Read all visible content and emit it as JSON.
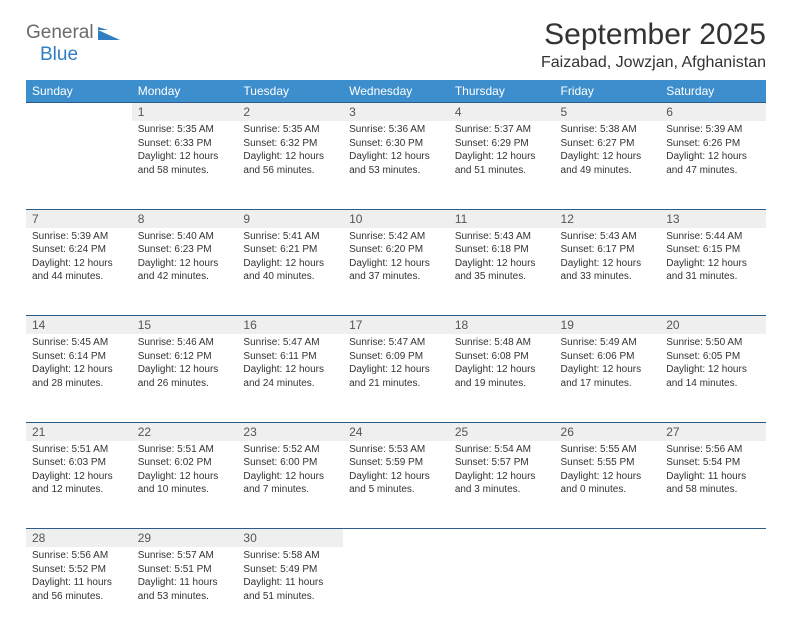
{
  "logo": {
    "line1": "General",
    "line2": "Blue"
  },
  "title": "September 2025",
  "location": "Faizabad, Jowzjan, Afghanistan",
  "colors": {
    "header_bg": "#3d8ecd",
    "header_text": "#ffffff",
    "daynum_bg": "#efefef",
    "rule": "#2a5d8a",
    "text": "#333333",
    "logo_gray": "#6a6a6a",
    "logo_blue": "#2f7fc2"
  },
  "weekdays": [
    "Sunday",
    "Monday",
    "Tuesday",
    "Wednesday",
    "Thursday",
    "Friday",
    "Saturday"
  ],
  "weeks": [
    [
      null,
      {
        "n": "1",
        "sr": "5:35 AM",
        "ss": "6:33 PM",
        "dl": "Daylight: 12 hours and 58 minutes."
      },
      {
        "n": "2",
        "sr": "5:35 AM",
        "ss": "6:32 PM",
        "dl": "Daylight: 12 hours and 56 minutes."
      },
      {
        "n": "3",
        "sr": "5:36 AM",
        "ss": "6:30 PM",
        "dl": "Daylight: 12 hours and 53 minutes."
      },
      {
        "n": "4",
        "sr": "5:37 AM",
        "ss": "6:29 PM",
        "dl": "Daylight: 12 hours and 51 minutes."
      },
      {
        "n": "5",
        "sr": "5:38 AM",
        "ss": "6:27 PM",
        "dl": "Daylight: 12 hours and 49 minutes."
      },
      {
        "n": "6",
        "sr": "5:39 AM",
        "ss": "6:26 PM",
        "dl": "Daylight: 12 hours and 47 minutes."
      }
    ],
    [
      {
        "n": "7",
        "sr": "5:39 AM",
        "ss": "6:24 PM",
        "dl": "Daylight: 12 hours and 44 minutes."
      },
      {
        "n": "8",
        "sr": "5:40 AM",
        "ss": "6:23 PM",
        "dl": "Daylight: 12 hours and 42 minutes."
      },
      {
        "n": "9",
        "sr": "5:41 AM",
        "ss": "6:21 PM",
        "dl": "Daylight: 12 hours and 40 minutes."
      },
      {
        "n": "10",
        "sr": "5:42 AM",
        "ss": "6:20 PM",
        "dl": "Daylight: 12 hours and 37 minutes."
      },
      {
        "n": "11",
        "sr": "5:43 AM",
        "ss": "6:18 PM",
        "dl": "Daylight: 12 hours and 35 minutes."
      },
      {
        "n": "12",
        "sr": "5:43 AM",
        "ss": "6:17 PM",
        "dl": "Daylight: 12 hours and 33 minutes."
      },
      {
        "n": "13",
        "sr": "5:44 AM",
        "ss": "6:15 PM",
        "dl": "Daylight: 12 hours and 31 minutes."
      }
    ],
    [
      {
        "n": "14",
        "sr": "5:45 AM",
        "ss": "6:14 PM",
        "dl": "Daylight: 12 hours and 28 minutes."
      },
      {
        "n": "15",
        "sr": "5:46 AM",
        "ss": "6:12 PM",
        "dl": "Daylight: 12 hours and 26 minutes."
      },
      {
        "n": "16",
        "sr": "5:47 AM",
        "ss": "6:11 PM",
        "dl": "Daylight: 12 hours and 24 minutes."
      },
      {
        "n": "17",
        "sr": "5:47 AM",
        "ss": "6:09 PM",
        "dl": "Daylight: 12 hours and 21 minutes."
      },
      {
        "n": "18",
        "sr": "5:48 AM",
        "ss": "6:08 PM",
        "dl": "Daylight: 12 hours and 19 minutes."
      },
      {
        "n": "19",
        "sr": "5:49 AM",
        "ss": "6:06 PM",
        "dl": "Daylight: 12 hours and 17 minutes."
      },
      {
        "n": "20",
        "sr": "5:50 AM",
        "ss": "6:05 PM",
        "dl": "Daylight: 12 hours and 14 minutes."
      }
    ],
    [
      {
        "n": "21",
        "sr": "5:51 AM",
        "ss": "6:03 PM",
        "dl": "Daylight: 12 hours and 12 minutes."
      },
      {
        "n": "22",
        "sr": "5:51 AM",
        "ss": "6:02 PM",
        "dl": "Daylight: 12 hours and 10 minutes."
      },
      {
        "n": "23",
        "sr": "5:52 AM",
        "ss": "6:00 PM",
        "dl": "Daylight: 12 hours and 7 minutes."
      },
      {
        "n": "24",
        "sr": "5:53 AM",
        "ss": "5:59 PM",
        "dl": "Daylight: 12 hours and 5 minutes."
      },
      {
        "n": "25",
        "sr": "5:54 AM",
        "ss": "5:57 PM",
        "dl": "Daylight: 12 hours and 3 minutes."
      },
      {
        "n": "26",
        "sr": "5:55 AM",
        "ss": "5:55 PM",
        "dl": "Daylight: 12 hours and 0 minutes."
      },
      {
        "n": "27",
        "sr": "5:56 AM",
        "ss": "5:54 PM",
        "dl": "Daylight: 11 hours and 58 minutes."
      }
    ],
    [
      {
        "n": "28",
        "sr": "5:56 AM",
        "ss": "5:52 PM",
        "dl": "Daylight: 11 hours and 56 minutes."
      },
      {
        "n": "29",
        "sr": "5:57 AM",
        "ss": "5:51 PM",
        "dl": "Daylight: 11 hours and 53 minutes."
      },
      {
        "n": "30",
        "sr": "5:58 AM",
        "ss": "5:49 PM",
        "dl": "Daylight: 11 hours and 51 minutes."
      },
      null,
      null,
      null,
      null
    ]
  ],
  "labels": {
    "sunrise": "Sunrise:",
    "sunset": "Sunset:"
  }
}
